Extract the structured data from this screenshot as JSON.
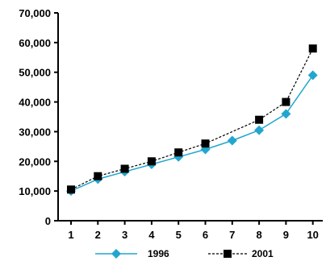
{
  "chart_data": {
    "type": "line",
    "x": [
      1,
      2,
      3,
      4,
      5,
      6,
      7,
      8,
      9,
      10
    ],
    "ylim": [
      0,
      70000
    ],
    "yticks": [
      0,
      10000,
      20000,
      30000,
      40000,
      50000,
      60000,
      70000
    ],
    "ytick_labels": [
      "0",
      "10,000",
      "20,000",
      "30,000",
      "40,000",
      "50,000",
      "60,000",
      "70,000"
    ],
    "xtick_labels": [
      "1",
      "2",
      "3",
      "4",
      "5",
      "6",
      "7",
      "8",
      "9",
      "10"
    ],
    "grid": false,
    "legend_position": "bottom",
    "series": [
      {
        "name": "1996",
        "color": "#22a6cf",
        "marker": "diamond",
        "line_style": "solid",
        "points": [
          [
            1,
            10000
          ],
          [
            2,
            14000
          ],
          [
            3,
            16500
          ],
          [
            4,
            19000
          ],
          [
            5,
            21500
          ],
          [
            6,
            24000
          ],
          [
            7,
            27000
          ],
          [
            8,
            30500
          ],
          [
            9,
            36000
          ],
          [
            10,
            49000
          ]
        ]
      },
      {
        "name": "2001",
        "color": "#000000",
        "marker": "square",
        "line_style": "dashed",
        "points": [
          [
            1,
            10500
          ],
          [
            2,
            15000
          ],
          [
            3,
            17500
          ],
          [
            4,
            20000
          ],
          [
            5,
            23000
          ],
          [
            6,
            26000
          ],
          [
            8,
            34000
          ],
          [
            9,
            40000
          ],
          [
            10,
            58000
          ]
        ]
      }
    ]
  }
}
